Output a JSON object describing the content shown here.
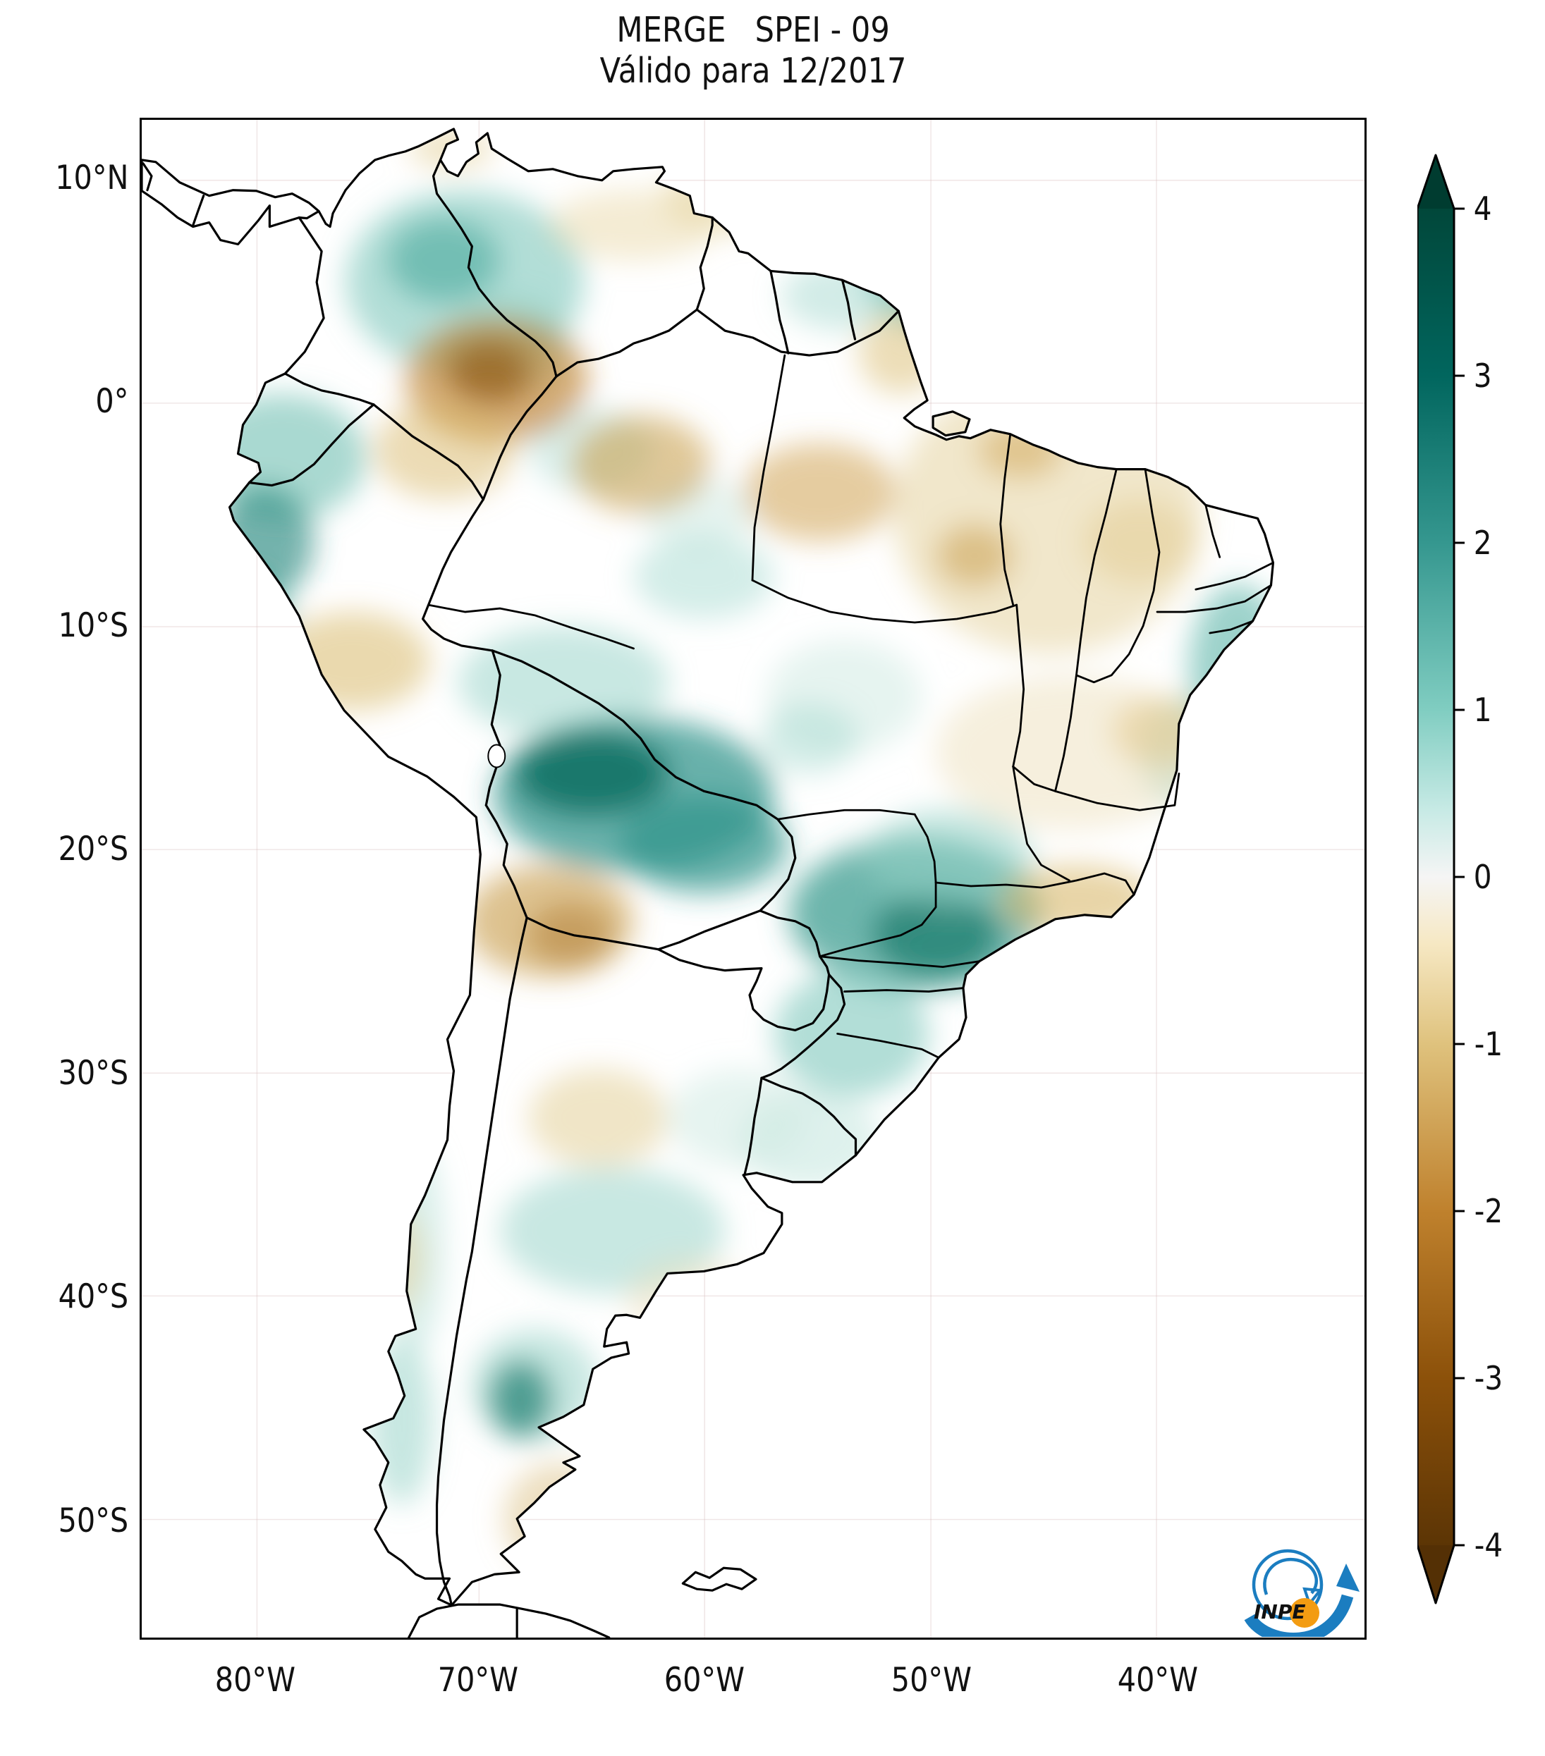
{
  "title": {
    "line1": "MERGE   SPEI - 09",
    "line2": "Válido para 12/2017"
  },
  "axes": {
    "lat_ticks": [
      "10°N",
      "0°",
      "10°S",
      "20°S",
      "30°S",
      "40°S",
      "50°S"
    ],
    "lon_ticks": [
      "80°W",
      "70°W",
      "60°W",
      "50°W",
      "40°W"
    ]
  },
  "colorbar": {
    "ticks": [
      "4",
      "3",
      "2",
      "1",
      "0",
      "-1",
      "-2",
      "-3",
      "-4"
    ],
    "range": [
      -4,
      4
    ],
    "wet_color": "#01665e",
    "dry_color": "#8c510a",
    "extreme_wet_color": "#003c30",
    "extreme_dry_color": "#543005"
  },
  "logo": {
    "label": "INPE",
    "blue": "#1b7dc0",
    "orange": "#f39c12"
  },
  "map": {
    "index_name": "SPEI-09",
    "valid_for": "12/2017",
    "border_color": "#000000"
  }
}
